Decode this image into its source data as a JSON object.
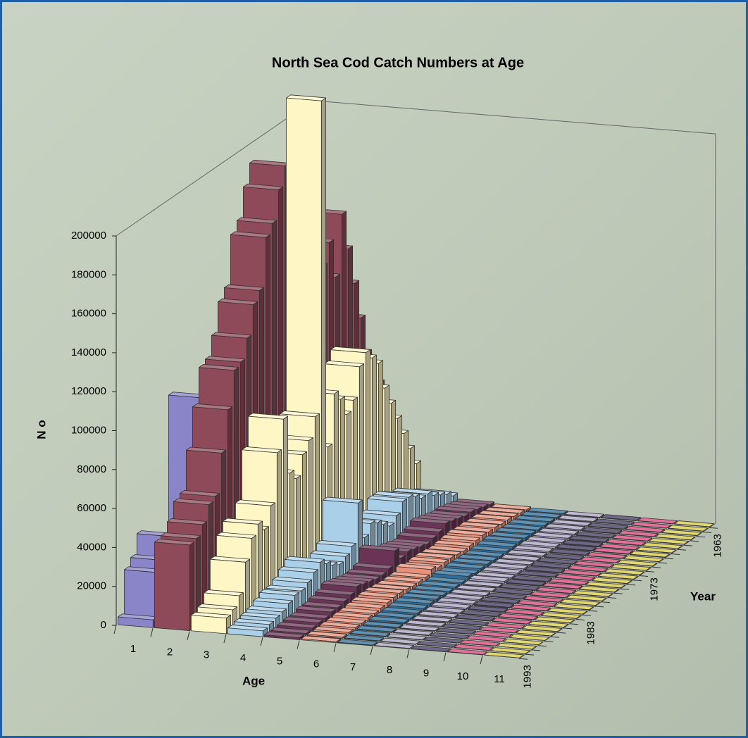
{
  "chart_data": {
    "type": "bar3d",
    "title": "North Sea Cod Catch Numbers at Age",
    "xlabel": "Age",
    "ylabel": "N o",
    "depth_label": "Year",
    "categories": [
      "1963",
      null,
      null,
      null,
      null,
      null,
      null,
      null,
      null,
      null,
      "1973",
      null,
      null,
      null,
      null,
      null,
      null,
      null,
      null,
      null,
      "1983",
      null,
      null,
      null,
      null,
      null,
      null,
      null,
      null,
      null,
      "1993"
    ],
    "ylim": [
      0,
      200000
    ],
    "yticks": [
      0,
      20000,
      40000,
      60000,
      80000,
      100000,
      120000,
      140000,
      160000,
      180000,
      200000
    ],
    "series": [
      {
        "name": "1",
        "color": "#8a84c8",
        "values": [
          2000,
          3000,
          5000,
          8000,
          10000,
          15000,
          20000,
          25000,
          30000,
          20000,
          15000,
          20000,
          25000,
          30000,
          25000,
          20000,
          40000,
          35000,
          30000,
          25000,
          60000,
          40000,
          100000,
          30000,
          25000,
          20000,
          35000,
          40000,
          30000,
          26000,
          4000
        ]
      },
      {
        "name": "2",
        "color": "#8e4a58",
        "values": [
          60000,
          70000,
          80000,
          100000,
          120000,
          140000,
          160000,
          130000,
          150000,
          140000,
          120000,
          130000,
          135000,
          125000,
          110000,
          205000,
          195000,
          180000,
          175000,
          150000,
          145000,
          130000,
          120000,
          118000,
          100000,
          80000,
          60000,
          58000,
          50000,
          45000,
          44000
        ]
      },
      {
        "name": "3",
        "color": "#fff6c6",
        "values": [
          20000,
          30000,
          40000,
          50000,
          60000,
          70000,
          85000,
          90000,
          95000,
          90000,
          75000,
          70000,
          80000,
          85000,
          60000,
          240000,
          80000,
          70000,
          65000,
          55000,
          60000,
          90000,
          75000,
          50000,
          40000,
          45000,
          40000,
          30000,
          15000,
          10000,
          8000
        ]
      },
      {
        "name": "4",
        "color": "#a9d0e8",
        "values": [
          5000,
          8000,
          10000,
          12000,
          15000,
          15000,
          18000,
          20000,
          20000,
          15000,
          12000,
          15000,
          18000,
          20000,
          15000,
          35000,
          15000,
          12000,
          10000,
          12000,
          15000,
          18000,
          15000,
          12000,
          10000,
          10000,
          8000,
          6000,
          5000,
          4000,
          3000
        ]
      },
      {
        "name": "5",
        "color": "#6b3456",
        "values": [
          2000,
          3000,
          4000,
          5000,
          5000,
          6000,
          7000,
          8000,
          6000,
          5000,
          4000,
          5000,
          6000,
          7000,
          6000,
          12000,
          5000,
          4000,
          4000,
          5000,
          6000,
          7000,
          5000,
          4000,
          3000,
          3000,
          2000,
          2000,
          1500,
          1000,
          1000
        ]
      },
      {
        "name": "6",
        "color": "#e8907a",
        "values": [
          1000,
          1500,
          2000,
          2500,
          2500,
          3000,
          3000,
          3500,
          3000,
          2500,
          2000,
          2500,
          3000,
          3000,
          2500,
          4000,
          2000,
          2000,
          2000,
          2500,
          3000,
          3000,
          2500,
          2000,
          1500,
          1500,
          1000,
          1000,
          800,
          600,
          500
        ]
      },
      {
        "name": "7",
        "color": "#2e6e9a",
        "values": [
          500,
          800,
          1000,
          1200,
          1200,
          1500,
          1500,
          1800,
          1500,
          1200,
          1000,
          1200,
          1500,
          1500,
          1200,
          2000,
          1000,
          1000,
          1000,
          1200,
          1500,
          1500,
          1200,
          1000,
          800,
          800,
          500,
          500,
          400,
          300,
          300
        ]
      },
      {
        "name": "8",
        "color": "#a8a0c0",
        "values": [
          300,
          400,
          500,
          600,
          600,
          700,
          700,
          800,
          700,
          600,
          500,
          600,
          700,
          700,
          600,
          1000,
          500,
          500,
          500,
          600,
          700,
          700,
          600,
          500,
          400,
          400,
          300,
          300,
          200,
          200,
          200
        ]
      },
      {
        "name": "9",
        "color": "#3e3460",
        "values": [
          200,
          200,
          300,
          300,
          300,
          400,
          400,
          500,
          400,
          300,
          300,
          300,
          400,
          400,
          300,
          500,
          300,
          300,
          300,
          300,
          400,
          400,
          300,
          300,
          200,
          200,
          200,
          100,
          100,
          100,
          100
        ]
      },
      {
        "name": "10",
        "color": "#d8407a",
        "values": [
          100,
          100,
          200,
          200,
          200,
          200,
          200,
          300,
          200,
          200,
          200,
          200,
          200,
          200,
          200,
          300,
          200,
          200,
          200,
          200,
          200,
          200,
          200,
          200,
          100,
          100,
          100,
          100,
          100,
          100,
          100
        ]
      },
      {
        "name": "11",
        "color": "#d8c840",
        "values": [
          100,
          100,
          100,
          100,
          100,
          100,
          100,
          200,
          100,
          100,
          100,
          100,
          100,
          100,
          100,
          200,
          100,
          100,
          100,
          100,
          100,
          100,
          100,
          100,
          100,
          100,
          0,
          0,
          0,
          0,
          0
        ]
      }
    ]
  }
}
